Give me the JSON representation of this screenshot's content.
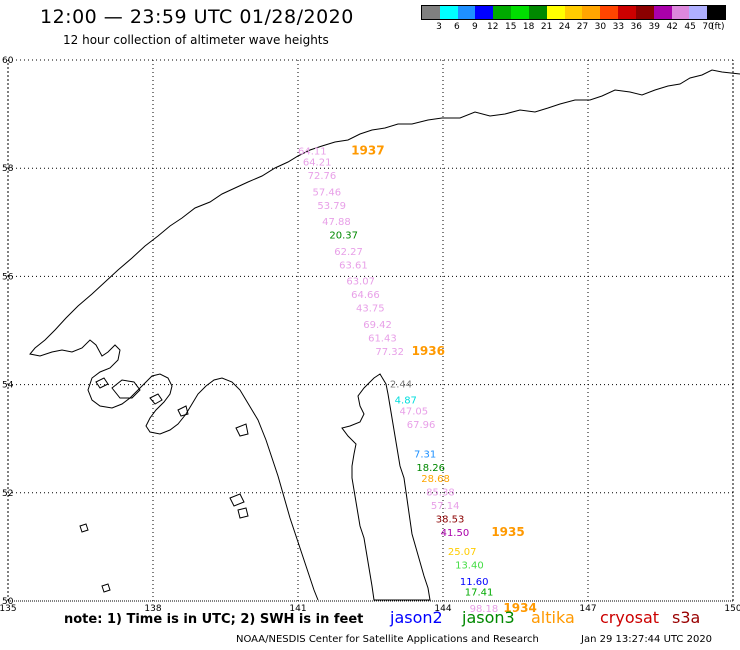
{
  "header": {
    "title": "12:00 — 23:59 UTC 01/28/2020",
    "subtitle": "12 hour collection of altimeter wave heights"
  },
  "colorbar": {
    "unit": "(ft)",
    "swatches": [
      "#808080",
      "#00ffff",
      "#1e90ff",
      "#0000ff",
      "#00aa00",
      "#00dd00",
      "#008800",
      "#ffff00",
      "#ffcc00",
      "#ffa500",
      "#ff4500",
      "#cc0000",
      "#8b0000",
      "#aa00aa",
      "#dd88dd",
      "#b0b0ff",
      "#000000"
    ],
    "labels": [
      "3",
      "6",
      "9",
      "12",
      "15",
      "18",
      "21",
      "24",
      "27",
      "30",
      "33",
      "36",
      "39",
      "42",
      "45",
      "70"
    ]
  },
  "axes": {
    "lon_ticks": [
      "135",
      "138",
      "141",
      "144",
      "147",
      "150"
    ],
    "lat_ticks": [
      "50",
      "52",
      "54",
      "56",
      "58",
      "60"
    ],
    "lon_range": [
      135,
      150
    ],
    "lat_range": [
      50,
      60
    ]
  },
  "observations": [
    {
      "lon": 141.0,
      "lat": 58.25,
      "value": "64.11",
      "color": "#e8a0e8"
    },
    {
      "lon": 141.1,
      "lat": 58.05,
      "value": "64.21",
      "color": "#e8a0e8"
    },
    {
      "lon": 141.2,
      "lat": 57.8,
      "value": "72.76",
      "color": "#e8a0e8"
    },
    {
      "lon": 141.3,
      "lat": 57.5,
      "value": "57.46",
      "color": "#e8a0e8"
    },
    {
      "lon": 141.4,
      "lat": 57.25,
      "value": "53.79",
      "color": "#e8a0e8"
    },
    {
      "lon": 141.5,
      "lat": 56.95,
      "value": "47.88",
      "color": "#e8a0e8"
    },
    {
      "lon": 141.65,
      "lat": 56.7,
      "value": "20.37",
      "color": "#008800"
    },
    {
      "lon": 141.75,
      "lat": 56.4,
      "value": "62.27",
      "color": "#e8a0e8"
    },
    {
      "lon": 141.85,
      "lat": 56.15,
      "value": "63.61",
      "color": "#e8a0e8"
    },
    {
      "lon": 142.0,
      "lat": 55.85,
      "value": "63.07",
      "color": "#e8a0e8"
    },
    {
      "lon": 142.1,
      "lat": 55.6,
      "value": "64.66",
      "color": "#e8a0e8"
    },
    {
      "lon": 142.2,
      "lat": 55.35,
      "value": "43.75",
      "color": "#e8a0e8"
    },
    {
      "lon": 142.35,
      "lat": 55.05,
      "value": "69.42",
      "color": "#e8a0e8"
    },
    {
      "lon": 142.45,
      "lat": 54.8,
      "value": "61.43",
      "color": "#e8a0e8"
    },
    {
      "lon": 142.6,
      "lat": 54.55,
      "value": "77.32",
      "color": "#e8a0e8"
    },
    {
      "lon": 142.9,
      "lat": 53.95,
      "value": "2.44",
      "color": "#808080"
    },
    {
      "lon": 143.0,
      "lat": 53.65,
      "value": "4.87",
      "color": "#00dddd"
    },
    {
      "lon": 143.1,
      "lat": 53.45,
      "value": "47.05",
      "color": "#e8a0e8"
    },
    {
      "lon": 143.25,
      "lat": 53.2,
      "value": "67.96",
      "color": "#e8a0e8"
    },
    {
      "lon": 143.4,
      "lat": 52.65,
      "value": "7.31",
      "color": "#1e90ff"
    },
    {
      "lon": 143.45,
      "lat": 52.4,
      "value": "18.26",
      "color": "#008800"
    },
    {
      "lon": 143.55,
      "lat": 52.2,
      "value": "28.68",
      "color": "#ffa500"
    },
    {
      "lon": 143.65,
      "lat": 51.95,
      "value": "85.38",
      "color": "#e8a0e8"
    },
    {
      "lon": 143.75,
      "lat": 51.7,
      "value": "57.14",
      "color": "#e8a0e8"
    },
    {
      "lon": 143.85,
      "lat": 51.45,
      "value": "38.53",
      "color": "#8b0000"
    },
    {
      "lon": 143.95,
      "lat": 51.2,
      "value": "41.50",
      "color": "#aa00aa"
    },
    {
      "lon": 144.1,
      "lat": 50.85,
      "value": "25.07",
      "color": "#ffcc00"
    },
    {
      "lon": 144.25,
      "lat": 50.6,
      "value": "13.40",
      "color": "#44dd44"
    },
    {
      "lon": 144.35,
      "lat": 50.3,
      "value": "11.60",
      "color": "#0000ff"
    },
    {
      "lon": 144.45,
      "lat": 50.1,
      "value": "17.41",
      "color": "#00aa00"
    },
    {
      "lon": 144.55,
      "lat": 49.8,
      "value": "98.18",
      "color": "#e8a0e8"
    }
  ],
  "cycles": [
    {
      "lon": 142.1,
      "lat": 58.25,
      "label": "1937"
    },
    {
      "lon": 143.35,
      "lat": 54.55,
      "label": "1936"
    },
    {
      "lon": 145.0,
      "lat": 51.2,
      "label": "1935"
    },
    {
      "lon": 145.25,
      "lat": 49.8,
      "label": "1934"
    }
  ],
  "note": "note:  1) Time is in UTC;  2) SWH is in feet",
  "satellites": [
    {
      "name": "jason2",
      "color": "#0000ff"
    },
    {
      "name": "jason3",
      "color": "#008800"
    },
    {
      "name": "altika",
      "color": "#ff9900"
    },
    {
      "name": "cryosat",
      "color": "#cc0000"
    },
    {
      "name": "s3a",
      "color": "#990000"
    }
  ],
  "footer": {
    "credit": "NOAA/NESDIS Center for Satellite Applications and Research",
    "timestamp": "Jan 29 13:27:44 UTC 2020"
  }
}
